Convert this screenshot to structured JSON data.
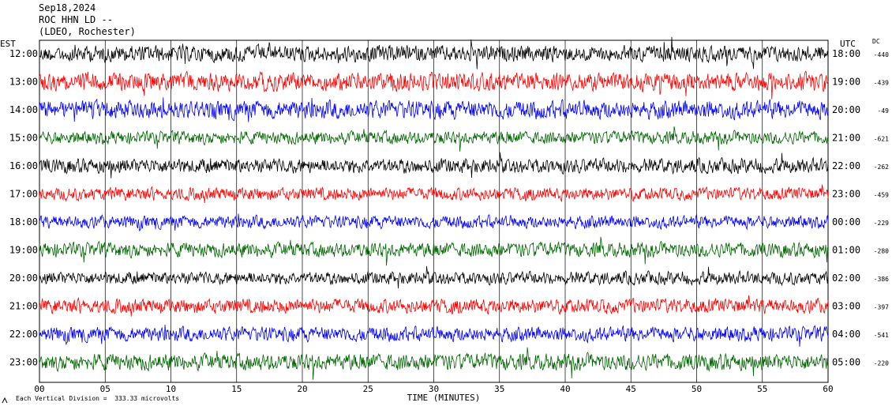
{
  "header": {
    "date": "Sep18,2024",
    "station": "ROC HHN LD --",
    "network": "(LDEO, Rochester)"
  },
  "left_axis_title": "EST",
  "right_axis_title": "UTC",
  "dc_title": "DC",
  "footnote": "Each Vertical Division =  333.33 microvolts",
  "colors": {
    "black": "#000000",
    "red": "#ff0000",
    "blue": "#0000ff",
    "green": "#006600"
  },
  "chart_data": {
    "type": "line",
    "title": "",
    "xlabel": "TIME (MINUTES)",
    "xlim": [
      0,
      60
    ],
    "x_ticks": [
      "00",
      "05",
      "10",
      "15",
      "20",
      "25",
      "30",
      "35",
      "40",
      "45",
      "50",
      "55",
      "60"
    ],
    "x_tick_values": [
      0,
      5,
      10,
      15,
      20,
      25,
      30,
      35,
      40,
      45,
      50,
      55,
      60
    ],
    "grid": "vertical at each minute tick",
    "series": [
      {
        "est": "12:00",
        "utc": "18:00",
        "dc": "-440",
        "color": "black",
        "amplitude": 9
      },
      {
        "est": "13:00",
        "utc": "19:00",
        "dc": "-439",
        "color": "red",
        "amplitude": 10
      },
      {
        "est": "14:00",
        "utc": "20:00",
        "dc": "-49",
        "color": "blue",
        "amplitude": 10
      },
      {
        "est": "15:00",
        "utc": "21:00",
        "dc": "-621",
        "color": "green",
        "amplitude": 7
      },
      {
        "est": "16:00",
        "utc": "22:00",
        "dc": "-262",
        "color": "black",
        "amplitude": 8
      },
      {
        "est": "17:00",
        "utc": "23:00",
        "dc": "-459",
        "color": "red",
        "amplitude": 7
      },
      {
        "est": "18:00",
        "utc": "00:00",
        "dc": "-229",
        "color": "blue",
        "amplitude": 7
      },
      {
        "est": "19:00",
        "utc": "01:00",
        "dc": "-280",
        "color": "green",
        "amplitude": 8
      },
      {
        "est": "20:00",
        "utc": "02:00",
        "dc": "-386",
        "color": "black",
        "amplitude": 7
      },
      {
        "est": "21:00",
        "utc": "03:00",
        "dc": "-397",
        "color": "red",
        "amplitude": 8
      },
      {
        "est": "22:00",
        "utc": "04:00",
        "dc": "-541",
        "color": "blue",
        "amplitude": 8
      },
      {
        "est": "23:00",
        "utc": "05:00",
        "dc": "-220",
        "color": "green",
        "amplitude": 9
      }
    ]
  }
}
